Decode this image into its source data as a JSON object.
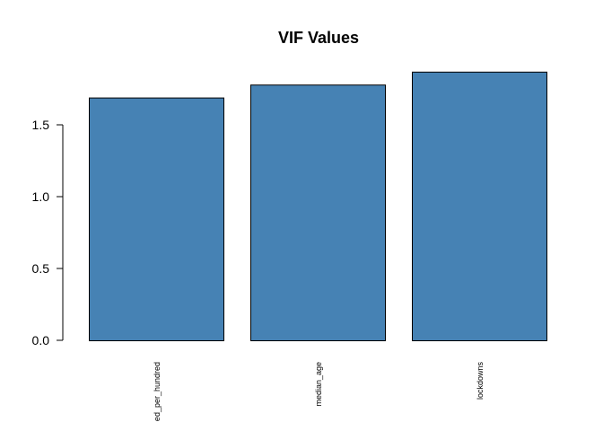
{
  "chart_data": {
    "type": "bar",
    "title": "VIF Values",
    "categories": [
      "ed_per_hundred",
      "median_age",
      "lockdowns"
    ],
    "values": [
      1.69,
      1.78,
      1.87
    ],
    "ylim": [
      0,
      1.87
    ],
    "yticks": [
      {
        "value": 0.0,
        "label": "0.0"
      },
      {
        "value": 0.5,
        "label": "0.5"
      },
      {
        "value": 1.0,
        "label": "1.0"
      },
      {
        "value": 1.5,
        "label": "1.5"
      }
    ],
    "bar_color": "#4682B4",
    "xlabel": "",
    "ylabel": "",
    "grid": false,
    "legend": false
  }
}
